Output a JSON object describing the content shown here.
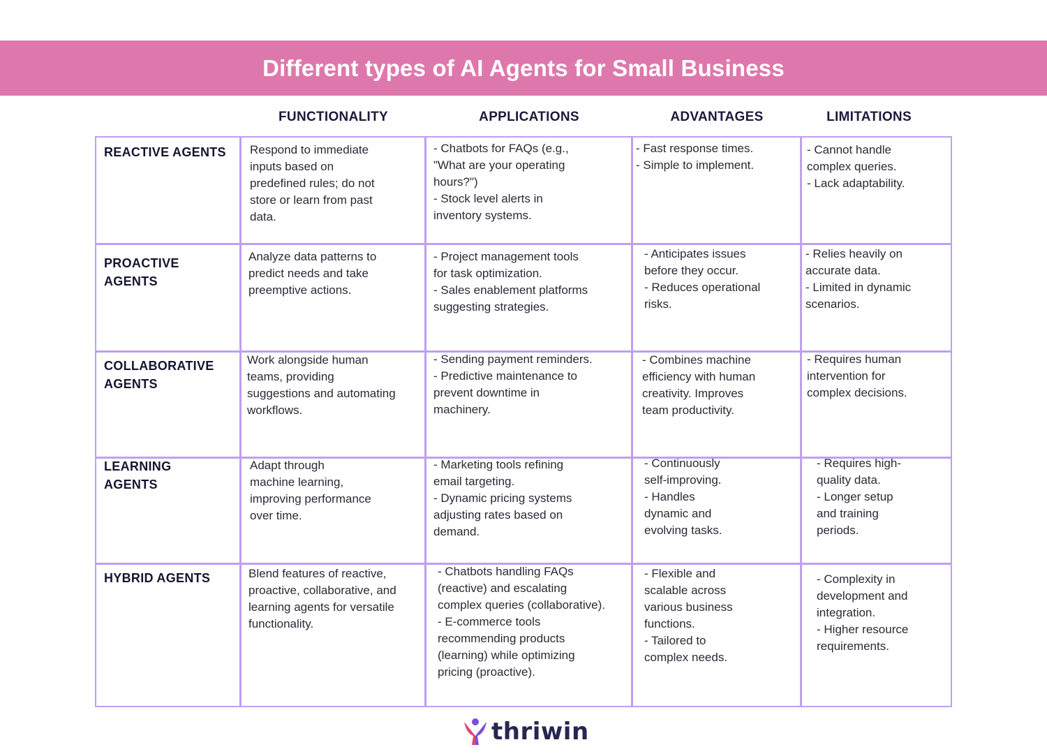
{
  "title": "Different types of AI Agents for Small Business",
  "columns": [
    "FUNCTIONALITY",
    "APPLICATIONS",
    "ADVANTAGES",
    "LIMITATIONS"
  ],
  "rows": [
    {
      "label": "REACTIVE AGENTS",
      "functionality": "Respond to immediate\ninputs based on\npredefined rules; do not\nstore or learn from past\ndata.",
      "applications": "- Chatbots for FAQs (e.g.,\n\"What are your operating\nhours?\")\n- Stock level alerts in\ninventory systems.",
      "advantages": "- Fast response times.\n- Simple to implement.",
      "limitations": "- Cannot handle\ncomplex queries.\n- Lack adaptability."
    },
    {
      "label": "PROACTIVE\nAGENTS",
      "functionality": "Analyze data patterns to\npredict needs and take\npreemptive actions.",
      "applications": "- Project management tools\nfor task optimization.\n- Sales enablement platforms\nsuggesting strategies.",
      "advantages": "- Anticipates issues\nbefore they occur.\n- Reduces operational\nrisks.",
      "limitations": "- Relies heavily on\naccurate data.\n- Limited in dynamic\nscenarios."
    },
    {
      "label": "COLLABORATIVE\nAGENTS",
      "functionality": "Work alongside human\nteams, providing\nsuggestions and automating\nworkflows.",
      "applications": "- Sending payment reminders.\n- Predictive maintenance to\nprevent downtime in\nmachinery.",
      "advantages": "- Combines machine\nefficiency with human\ncreativity. Improves\nteam productivity.",
      "limitations": "- Requires human\nintervention for\ncomplex decisions."
    },
    {
      "label": "LEARNING\nAGENTS",
      "functionality": "Adapt through\nmachine learning,\nimproving performance\nover time.",
      "applications": "- Marketing tools refining\nemail targeting.\n- Dynamic pricing systems\nadjusting rates based on\ndemand.",
      "advantages": "- Continuously\nself-improving.\n- Handles\ndynamic and\nevolving tasks.",
      "limitations": "- Requires high-\nquality data.\n- Longer setup\nand training\nperiods."
    },
    {
      "label": "HYBRID AGENTS",
      "functionality": "Blend features of reactive,\nproactive, collaborative, and\nlearning agents for versatile\nfunctionality.",
      "applications": "- Chatbots handling FAQs\n(reactive) and escalating\ncomplex queries (collaborative).\n- E-commerce tools\nrecommending products\n(learning) while optimizing\npricing (proactive).",
      "advantages": "- Flexible and\nscalable across\nvarious business\nfunctions.\n- Tailored to\ncomplex needs.",
      "limitations": "- Complexity in\ndevelopment and\nintegration.\n- Higher resource\nrequirements."
    }
  ],
  "logo": {
    "text": "thriwin",
    "icon": "person-arms-up-icon"
  },
  "colors": {
    "banner": "#de78ac",
    "grid": "#bf9ff0",
    "logo_icon_1": "#e0457b",
    "logo_icon_2": "#7a4dd8"
  }
}
